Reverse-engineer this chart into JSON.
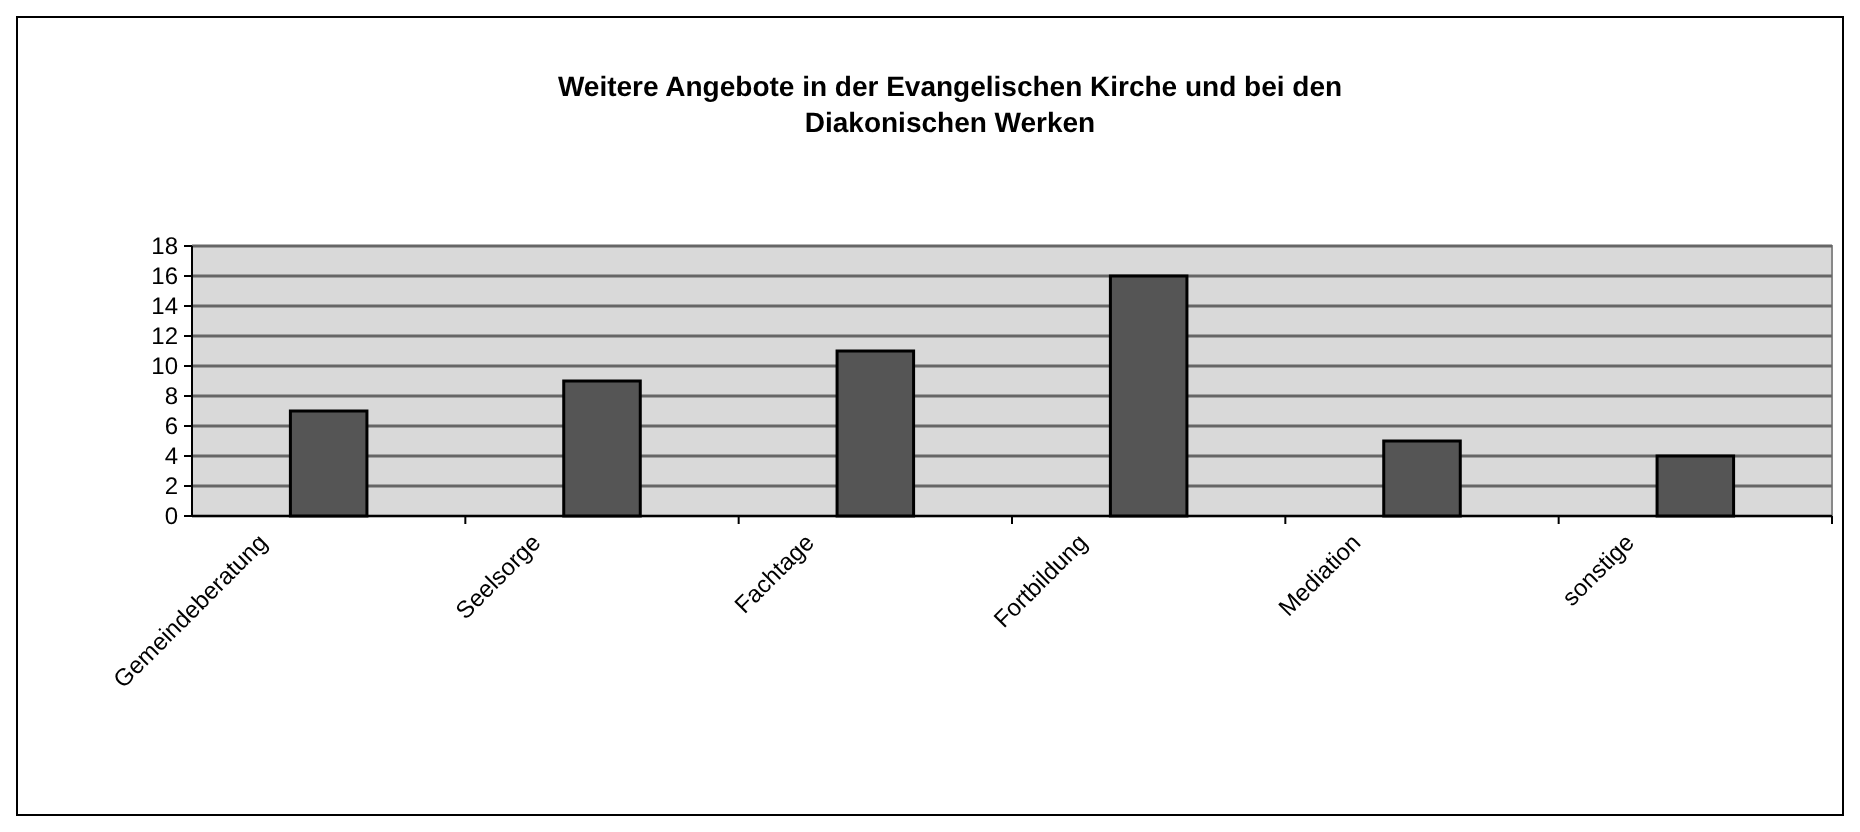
{
  "chart_data": {
    "type": "bar",
    "title": "Weitere Angebote in der Evangelischen Kirche und bei den Diakonischen Werken",
    "categories": [
      "Gemeindeberatung",
      "Seelsorge",
      "Fachtage",
      "Fortbildung",
      "Mediation",
      "sonstige"
    ],
    "values": [
      7,
      9,
      11,
      16,
      5,
      4
    ],
    "color": "#555555",
    "ylim": [
      0,
      18
    ],
    "yticks": [
      0,
      2,
      4,
      6,
      8,
      10,
      12,
      14,
      16,
      18
    ],
    "grid": "y"
  }
}
